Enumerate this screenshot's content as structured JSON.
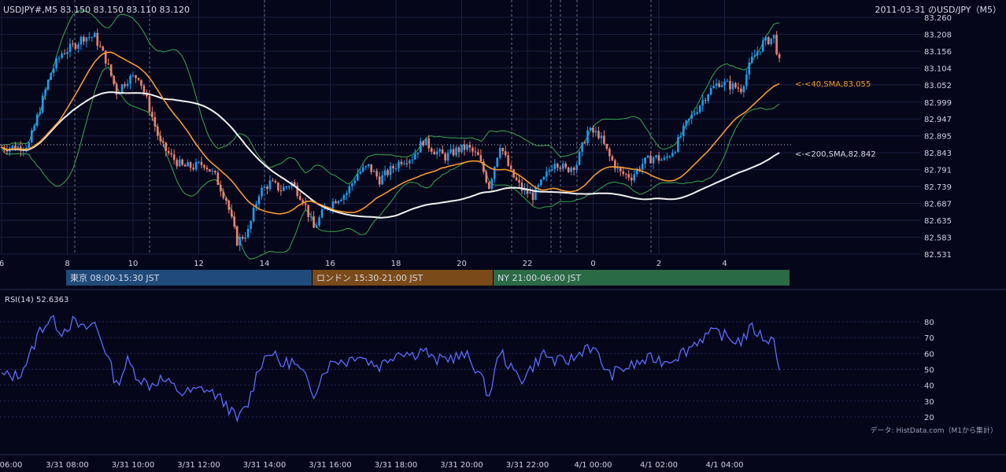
{
  "header": {
    "symbol_info": "USDJPY#,M5 83.150 83.150 83.110 83.120",
    "right_title": "2011-03-31 のUSD/JPY（M5）"
  },
  "colors": {
    "background": "#05061a",
    "grid": "#1c2040",
    "candle_up": "#1e9cf0",
    "candle_down": "#f0806a",
    "sma40": "#f39a2c",
    "sma200": "#f2f2f2",
    "bollinger": "#38a84c",
    "rsi": "#5a6cff",
    "session_tokyo": "#1f4a7a",
    "session_london": "#7a4a18",
    "session_ny": "#2a6a45"
  },
  "labels": {
    "sma40": "<-<40,SMA,83.055",
    "sma200": "<-<200,SMA,82.842",
    "rsi_title": "RSI(14) 52.6363",
    "credit": "データ: HistData.com（M1から集計）"
  },
  "sessions": [
    {
      "label": "東京 08:00-15:30 JST"
    },
    {
      "label": "ロンドン 15:30-21:00 JST"
    },
    {
      "label": "NY 21:00-06:00 JST"
    }
  ],
  "chart_data": [
    {
      "type": "candlestick",
      "title": "USDJPY#,M5",
      "ylim": [
        82.531,
        83.26
      ],
      "y_ticks": [
        "83.260",
        "83.208",
        "83.156",
        "83.104",
        "83.052",
        "82.999",
        "82.947",
        "82.895",
        "82.843",
        "82.791",
        "82.739",
        "82.687",
        "82.635",
        "82.583",
        "82.531"
      ],
      "x_ticks": [
        "6",
        "8",
        "10",
        "12",
        "14",
        "16",
        "18",
        "20",
        "22",
        "0",
        "2",
        "4"
      ],
      "last_ohlc": {
        "open": 83.15,
        "high": 83.15,
        "low": 83.11,
        "close": 83.12
      },
      "series": [
        {
          "name": "SMA 40",
          "last": 83.055
        },
        {
          "name": "SMA 200",
          "last": 82.842
        },
        {
          "name": "Bollinger Bands"
        }
      ],
      "approx_close_path": [
        [
          "06:00",
          82.86
        ],
        [
          "06:30",
          82.86
        ],
        [
          "06:50",
          82.87
        ],
        [
          "07:10",
          82.98
        ],
        [
          "07:30",
          83.09
        ],
        [
          "07:50",
          83.15
        ],
        [
          "08:10",
          83.17
        ],
        [
          "08:30",
          83.2
        ],
        [
          "08:50",
          83.2
        ],
        [
          "09:10",
          83.13
        ],
        [
          "09:30",
          83.03
        ],
        [
          "09:50",
          83.07
        ],
        [
          "10:10",
          83.08
        ],
        [
          "10:30",
          82.98
        ],
        [
          "10:50",
          82.87
        ],
        [
          "11:10",
          82.83
        ],
        [
          "11:30",
          82.8
        ],
        [
          "11:50",
          82.8
        ],
        [
          "12:10",
          82.81
        ],
        [
          "12:30",
          82.77
        ],
        [
          "12:50",
          82.7
        ],
        [
          "13:10",
          82.57
        ],
        [
          "13:30",
          82.6
        ],
        [
          "13:50",
          82.72
        ],
        [
          "14:10",
          82.75
        ],
        [
          "14:30",
          82.73
        ],
        [
          "14:50",
          82.75
        ],
        [
          "15:10",
          82.7
        ],
        [
          "15:30",
          82.61
        ],
        [
          "15:50",
          82.67
        ],
        [
          "16:10",
          82.7
        ],
        [
          "16:30",
          82.72
        ],
        [
          "16:50",
          82.78
        ],
        [
          "17:10",
          82.8
        ],
        [
          "17:30",
          82.76
        ],
        [
          "17:50",
          82.79
        ],
        [
          "18:10",
          82.82
        ],
        [
          "18:30",
          82.83
        ],
        [
          "18:50",
          82.88
        ],
        [
          "19:10",
          82.85
        ],
        [
          "19:30",
          82.83
        ],
        [
          "19:50",
          82.85
        ],
        [
          "20:10",
          82.86
        ],
        [
          "20:30",
          82.83
        ],
        [
          "20:50",
          82.74
        ],
        [
          "21:10",
          82.87
        ],
        [
          "21:30",
          82.78
        ],
        [
          "21:50",
          82.73
        ],
        [
          "22:10",
          82.71
        ],
        [
          "22:30",
          82.76
        ],
        [
          "22:50",
          82.82
        ],
        [
          "23:10",
          82.79
        ],
        [
          "23:30",
          82.81
        ],
        [
          "23:50",
          82.91
        ],
        [
          "00:10",
          82.9
        ],
        [
          "00:30",
          82.83
        ],
        [
          "00:50",
          82.78
        ],
        [
          "01:10",
          82.77
        ],
        [
          "01:30",
          82.81
        ],
        [
          "01:50",
          82.83
        ],
        [
          "02:10",
          82.82
        ],
        [
          "02:30",
          82.86
        ],
        [
          "02:50",
          82.93
        ],
        [
          "03:10",
          82.98
        ],
        [
          "03:30",
          83.03
        ],
        [
          "03:50",
          83.06
        ],
        [
          "04:10",
          83.05
        ],
        [
          "04:30",
          83.04
        ],
        [
          "04:50",
          83.13
        ],
        [
          "05:10",
          83.18
        ],
        [
          "05:30",
          83.2
        ],
        [
          "05:40",
          83.12
        ]
      ]
    },
    {
      "type": "line",
      "title": "RSI(14)",
      "last": 52.6363,
      "ylim": [
        15,
        85
      ],
      "y_ticks": [
        "80",
        "70",
        "60",
        "50",
        "40",
        "30",
        "20"
      ],
      "x_ticks": [
        "06:00",
        "3/31 08:00",
        "3/31 10:00",
        "3/31 12:00",
        "3/31 14:00",
        "3/31 16:00",
        "3/31 18:00",
        "3/31 20:00",
        "3/31 22:00",
        "4/1 00:00",
        "4/1 02:00",
        "4/1 04:00"
      ],
      "approx_values": [
        [
          "06:00",
          46
        ],
        [
          "06:30",
          46
        ],
        [
          "06:50",
          57
        ],
        [
          "07:10",
          75
        ],
        [
          "07:30",
          82
        ],
        [
          "07:50",
          74
        ],
        [
          "08:10",
          80
        ],
        [
          "08:30",
          75
        ],
        [
          "08:50",
          79
        ],
        [
          "09:10",
          62
        ],
        [
          "09:30",
          40
        ],
        [
          "09:50",
          55
        ],
        [
          "10:10",
          45
        ],
        [
          "10:30",
          40
        ],
        [
          "10:50",
          44
        ],
        [
          "11:10",
          40
        ],
        [
          "11:30",
          35
        ],
        [
          "11:50",
          36
        ],
        [
          "12:10",
          38
        ],
        [
          "12:30",
          34
        ],
        [
          "12:50",
          28
        ],
        [
          "13:10",
          18
        ],
        [
          "13:30",
          28
        ],
        [
          "13:50",
          52
        ],
        [
          "14:10",
          62
        ],
        [
          "14:30",
          53
        ],
        [
          "14:50",
          55
        ],
        [
          "15:10",
          47
        ],
        [
          "15:30",
          35
        ],
        [
          "15:50",
          50
        ],
        [
          "16:10",
          56
        ],
        [
          "16:30",
          55
        ],
        [
          "16:50",
          60
        ],
        [
          "17:10",
          55
        ],
        [
          "17:30",
          52
        ],
        [
          "17:50",
          58
        ],
        [
          "18:10",
          62
        ],
        [
          "18:30",
          59
        ],
        [
          "18:50",
          63
        ],
        [
          "19:10",
          55
        ],
        [
          "19:30",
          57
        ],
        [
          "19:50",
          58
        ],
        [
          "20:10",
          58
        ],
        [
          "20:30",
          49
        ],
        [
          "20:50",
          33
        ],
        [
          "21:10",
          62
        ],
        [
          "21:30",
          50
        ],
        [
          "21:50",
          44
        ],
        [
          "22:10",
          52
        ],
        [
          "22:30",
          60
        ],
        [
          "22:50",
          55
        ],
        [
          "23:10",
          55
        ],
        [
          "23:30",
          58
        ],
        [
          "23:50",
          66
        ],
        [
          "00:10",
          58
        ],
        [
          "00:30",
          46
        ],
        [
          "00:50",
          50
        ],
        [
          "01:10",
          52
        ],
        [
          "01:30",
          55
        ],
        [
          "01:50",
          57
        ],
        [
          "02:10",
          55
        ],
        [
          "02:30",
          58
        ],
        [
          "02:50",
          62
        ],
        [
          "03:10",
          68
        ],
        [
          "03:30",
          72
        ],
        [
          "03:50",
          73
        ],
        [
          "04:10",
          69
        ],
        [
          "04:30",
          68
        ],
        [
          "04:50",
          76
        ],
        [
          "05:10",
          70
        ],
        [
          "05:30",
          68
        ],
        [
          "05:40",
          52.6
        ]
      ]
    }
  ]
}
